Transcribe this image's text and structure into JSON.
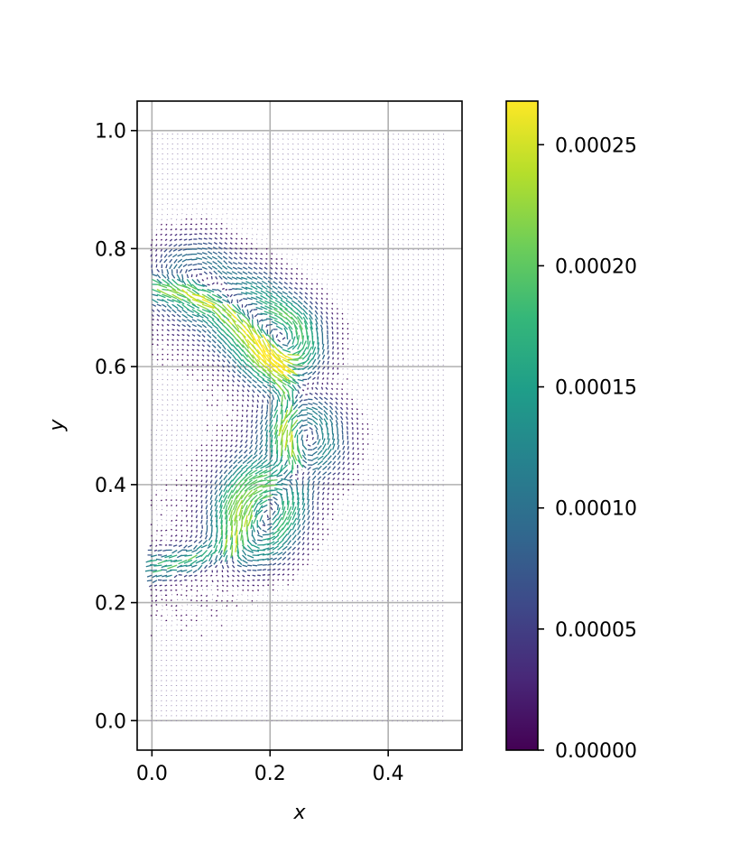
{
  "chart_data": [
    {
      "type": "quiver",
      "title": "",
      "xlabel": "x",
      "ylabel": "y",
      "xlim": [
        -0.025,
        0.525
      ],
      "ylim": [
        -0.05,
        1.05
      ],
      "xticks": [
        "0.0",
        "0.2",
        "0.4"
      ],
      "xtick_values": [
        0.0,
        0.2,
        0.4
      ],
      "yticks": [
        "0.0",
        "0.2",
        "0.4",
        "0.6",
        "0.8",
        "1.0"
      ],
      "ytick_values": [
        0.0,
        0.2,
        0.4,
        0.6,
        0.8,
        1.0
      ],
      "grid": true,
      "domain": {
        "x": [
          0.0,
          0.5
        ],
        "y": [
          0.0,
          1.0
        ]
      },
      "description_of_field": "velocity vectors colored by magnitude; strong C-shaped band of arrows from (0.0,0.74) through (0.2,0.63),(0.23,0.55),(0.25,0.47),(0.22,0.40),(0.17,0.32) to (0.0,0.26), with vortices near the band",
      "band_path": [
        [
          0.0,
          0.735
        ],
        [
          0.05,
          0.735
        ],
        [
          0.1,
          0.715
        ],
        [
          0.15,
          0.685
        ],
        [
          0.19,
          0.65
        ],
        [
          0.215,
          0.615
        ],
        [
          0.225,
          0.575
        ],
        [
          0.23,
          0.535
        ],
        [
          0.24,
          0.48
        ],
        [
          0.24,
          0.44
        ],
        [
          0.22,
          0.405
        ],
        [
          0.195,
          0.37
        ],
        [
          0.17,
          0.33
        ],
        [
          0.13,
          0.3
        ],
        [
          0.08,
          0.28
        ],
        [
          0.03,
          0.265
        ],
        [
          0.0,
          0.26
        ]
      ],
      "vortices": [
        {
          "x": 0.075,
          "y": 0.745,
          "max": 0.0001
        },
        {
          "x": 0.155,
          "y": 0.695,
          "max": 0.00011
        },
        {
          "x": 0.215,
          "y": 0.64,
          "max": 0.00019
        },
        {
          "x": 0.255,
          "y": 0.48,
          "max": 0.00013
        },
        {
          "x": 0.195,
          "y": 0.385,
          "max": 0.00014
        },
        {
          "x": 0.17,
          "y": 0.33,
          "max": 0.00013
        }
      ],
      "value_range": [
        0.0,
        0.000268
      ]
    },
    {
      "type": "colorbar",
      "colormap": "viridis",
      "range": [
        0.0,
        0.000268
      ],
      "ticks": [
        "0.00000",
        "0.00005",
        "0.00010",
        "0.00015",
        "0.00020",
        "0.00025"
      ],
      "tick_values": [
        0.0,
        5e-05,
        0.0001,
        0.00015,
        0.0002,
        0.00025
      ],
      "colors": [
        "#440154",
        "#482878",
        "#3e4989",
        "#31688e",
        "#26828e",
        "#1f9e89",
        "#35b779",
        "#6ece58",
        "#b5de2b",
        "#fde725"
      ]
    }
  ]
}
